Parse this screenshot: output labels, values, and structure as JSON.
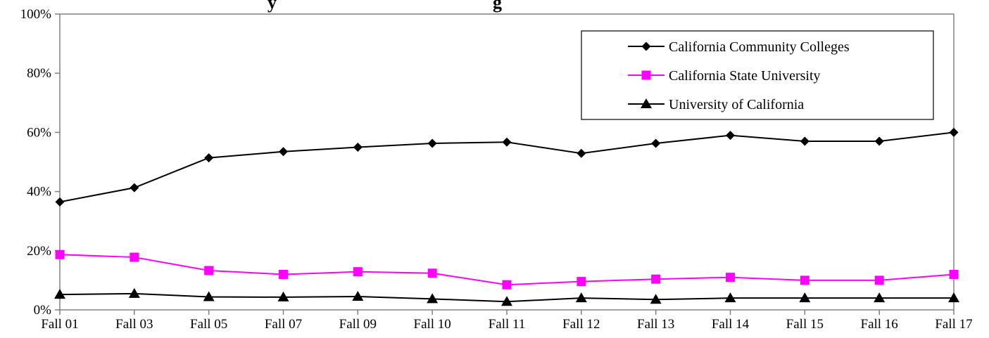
{
  "chart_data": {
    "type": "line",
    "title": "y … g",
    "xlabel": "",
    "ylabel": "",
    "categories": [
      "Fall 01",
      "Fall 03",
      "Fall 05",
      "Fall 07",
      "Fall 09",
      "Fall 10",
      "Fall 11",
      "Fall 12",
      "Fall 13",
      "Fall 14",
      "Fall 15",
      "Fall 16",
      "Fall 17"
    ],
    "y_ticks": [
      "0%",
      "20%",
      "40%",
      "60%",
      "80%",
      "100%"
    ],
    "ylim": [
      0,
      100
    ],
    "grid": false,
    "legend_position": "top-right",
    "series": [
      {
        "name": "California Community Colleges",
        "color": "#000000",
        "marker": "diamond",
        "values": [
          36.5,
          41.3,
          51.4,
          53.5,
          55.0,
          56.3,
          56.7,
          52.9,
          56.3,
          59.0,
          57.0,
          57.0,
          60.0
        ]
      },
      {
        "name": "California State University",
        "color": "#ff00ff",
        "marker": "square",
        "values": [
          18.7,
          17.8,
          13.3,
          12.0,
          12.9,
          12.4,
          8.5,
          9.6,
          10.4,
          11.0,
          10.0,
          10.0,
          12.0
        ]
      },
      {
        "name": "University of California",
        "color": "#000000",
        "marker": "triangle",
        "values": [
          5.2,
          5.5,
          4.4,
          4.3,
          4.5,
          3.7,
          2.8,
          4.0,
          3.5,
          4.0,
          4.0,
          4.0,
          4.0
        ]
      }
    ]
  }
}
